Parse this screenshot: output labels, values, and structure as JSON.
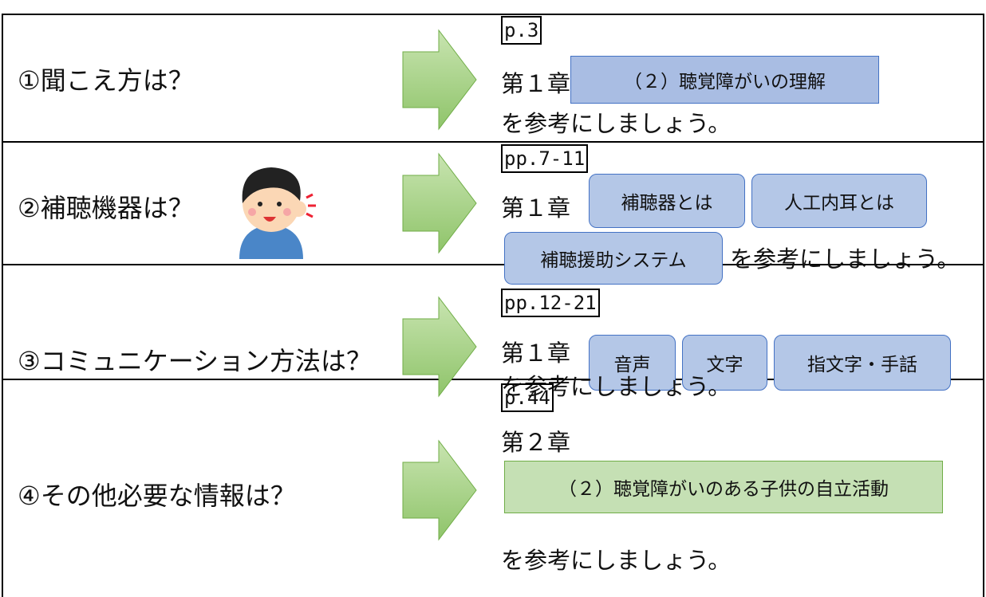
{
  "rows": [
    {
      "question": "①聞こえ方は？",
      "page": "p.3",
      "chapter": "第１章",
      "links": [
        "（２）聴覚障がいの理解"
      ],
      "suffix": "を参考にしましょう。"
    },
    {
      "question": "②補聴機器は？",
      "page": "pp.7-11",
      "chapter": "第１章",
      "links": [
        "補聴器とは",
        "人工内耳とは",
        "補聴援助システム"
      ],
      "suffix": "を参考にしましょう。"
    },
    {
      "question": "③コミュニケーション方法は？",
      "page": "pp.12-21",
      "chapter": "第１章",
      "links": [
        "音声",
        "文字",
        "指文字・手話"
      ],
      "suffix": "を参考にしましょう。"
    },
    {
      "question": "④その他必要な情報は？",
      "page": "p.44",
      "chapter": "第２章",
      "links": [
        "（２）聴覚障がいのある子供の自立活動"
      ],
      "suffix": "を参考にしましょう。"
    }
  ]
}
